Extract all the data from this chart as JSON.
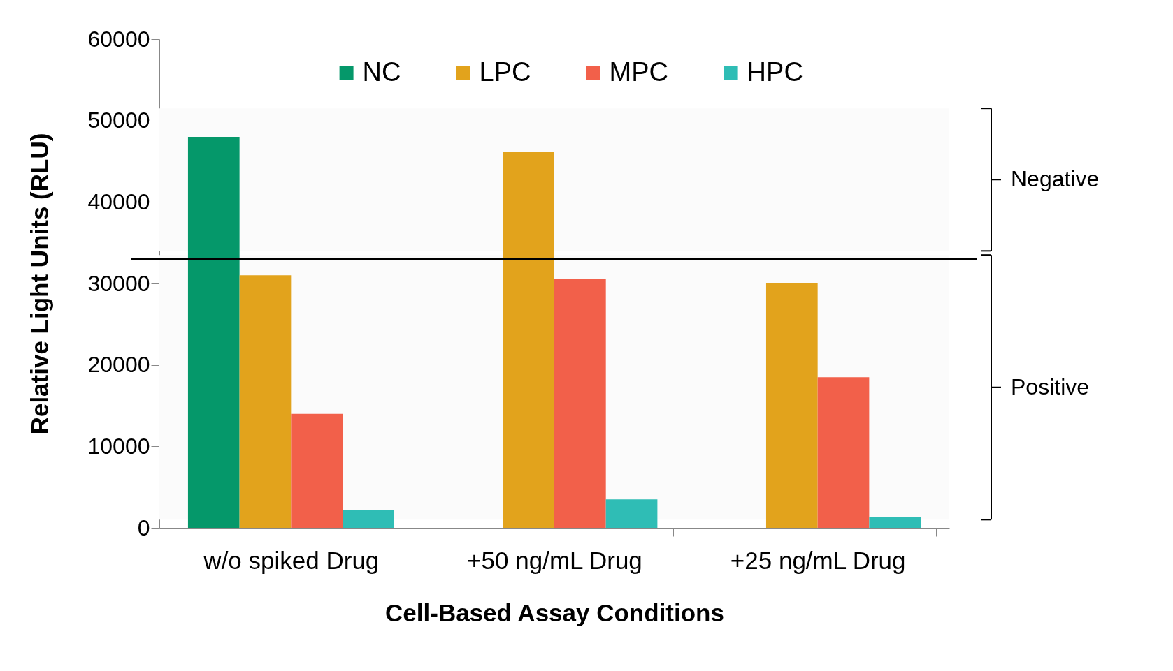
{
  "chart_data": {
    "type": "bar",
    "xlabel": "Cell-Based Assay Conditions",
    "ylabel": "Relative Light Units (RLU)",
    "categories": [
      "w/o spiked Drug",
      "+50 ng/mL Drug",
      "+25 ng/mL Drug"
    ],
    "series": [
      {
        "name": "NC",
        "color": "#05986a",
        "values": [
          48000,
          null,
          null
        ]
      },
      {
        "name": "LPC",
        "color": "#e2a31c",
        "values": [
          31000,
          46200,
          30000
        ]
      },
      {
        "name": "MPC",
        "color": "#f2604a",
        "values": [
          14000,
          30600,
          18500
        ]
      },
      {
        "name": "HPC",
        "color": "#2fbdb5",
        "values": [
          2200,
          3500,
          1300
        ]
      }
    ],
    "ylim": [
      0,
      60000
    ],
    "yticks": [
      0,
      10000,
      20000,
      30000,
      40000,
      50000,
      60000
    ],
    "ref_lines": [
      {
        "axis": "y",
        "value": 33000,
        "color": "#000000"
      }
    ],
    "bands": [
      {
        "axis": "y",
        "from": 34000,
        "to": 51500,
        "label": "Negative",
        "color": "#fbfbfb"
      },
      {
        "axis": "y",
        "from": 1000,
        "to": 33500,
        "label": "Positive",
        "color": "#fbfbfb"
      }
    ],
    "legend": "top",
    "grid": false
  }
}
